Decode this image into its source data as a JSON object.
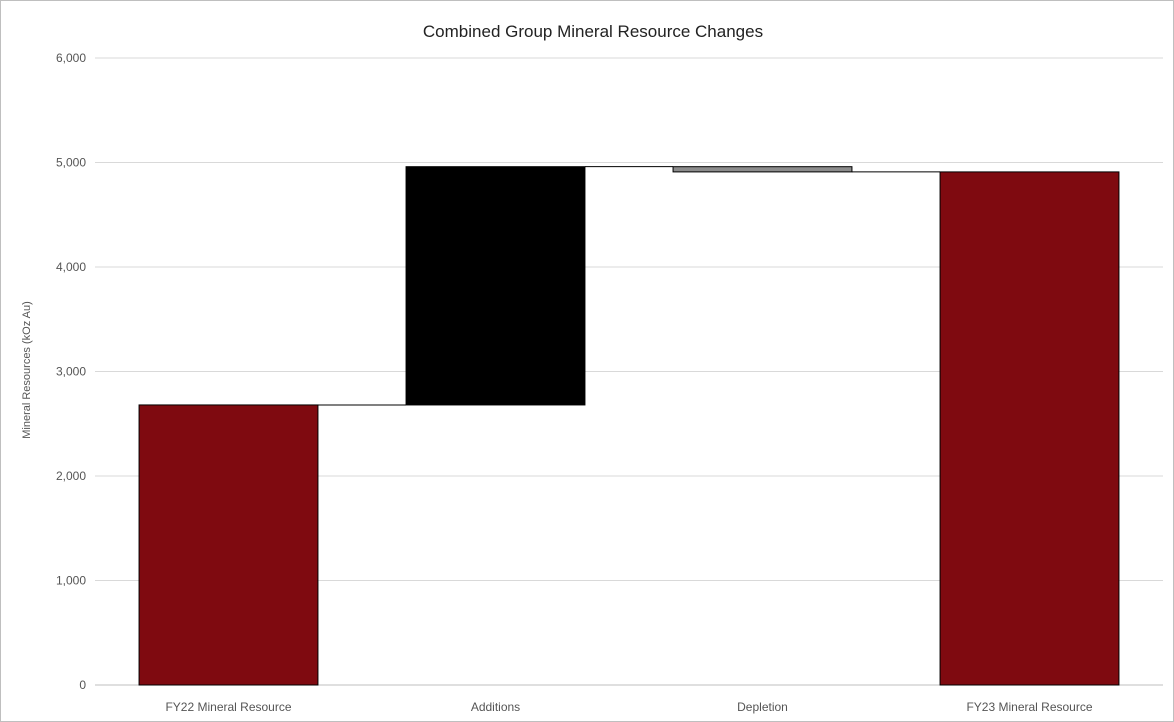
{
  "chart_data": {
    "type": "bar",
    "subtype": "waterfall",
    "title": "Combined Group Mineral Resource Changes",
    "xlabel": "",
    "ylabel": "Mineral Resources (kOz Au)",
    "ylim": [
      0,
      6000
    ],
    "yticks": [
      0,
      1000,
      2000,
      3000,
      4000,
      5000,
      6000
    ],
    "ytick_labels": [
      "0",
      "1,000",
      "2,000",
      "3,000",
      "4,000",
      "5,000",
      "6,000"
    ],
    "categories": [
      "FY22 Mineral Resource",
      "Additions",
      "Depletion",
      "FY23 Mineral Resource"
    ],
    "bars": [
      {
        "category": "FY22 Mineral Resource",
        "start": 0,
        "end": 2680,
        "kind": "total",
        "color": "#7f0a10"
      },
      {
        "category": "Additions",
        "start": 2680,
        "end": 4960,
        "kind": "increase",
        "color": "#000000"
      },
      {
        "category": "Depletion",
        "start": 4960,
        "end": 4910,
        "kind": "decrease",
        "color": "#8c8c8c"
      },
      {
        "category": "FY23 Mineral Resource",
        "start": 0,
        "end": 4910,
        "kind": "total",
        "color": "#7f0a10"
      }
    ],
    "grid": true,
    "connectors": true,
    "legend": "none"
  }
}
